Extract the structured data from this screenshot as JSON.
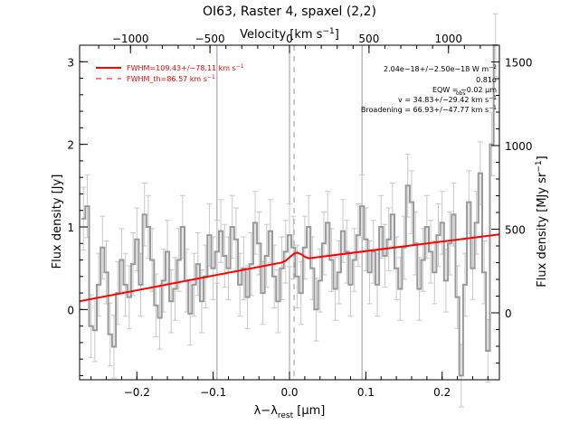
{
  "chart_data": {
    "type": "line",
    "title": "OI63, Raster 4, spaxel (2,2)",
    "xlabel": "λ−λ",
    "xlabel_sub": "rest",
    "xlabel_unit": " [μm]",
    "ylabel": "Flux density [Jy]",
    "ylabel_right": "Flux density [MJy sr",
    "ylabel_right_sup": "−1",
    "ylabel_right_end": "]",
    "xlabel_top": "Velocity [km s",
    "xlabel_top_sup": "−1",
    "xlabel_top_end": "]",
    "xlim": [
      -0.275,
      0.275
    ],
    "ylim": [
      -0.85,
      3.2
    ],
    "ylim_right": [
      -400,
      1600
    ],
    "vlim": [
      -1320,
      1320
    ],
    "x_ticks": [
      -0.2,
      -0.1,
      0.0,
      0.1,
      0.2
    ],
    "x_tick_labels": [
      "−0.2",
      "−0.1",
      "0.0",
      "0.1",
      "0.2"
    ],
    "y_ticks": [
      0,
      1,
      2,
      3
    ],
    "y_tick_labels": [
      "0",
      "1",
      "2",
      "3"
    ],
    "y_right_ticks": [
      0,
      500,
      1000,
      1500
    ],
    "y_right_tick_labels": [
      "0",
      "500",
      "1000",
      "1500"
    ],
    "v_ticks": [
      -1000,
      -500,
      0,
      500,
      1000
    ],
    "v_tick_labels": [
      "−1000",
      "−500",
      "0",
      "500",
      "1000"
    ],
    "vertical_lines_solid": [
      -0.095,
      0.0,
      0.095
    ],
    "vertical_line_dashed": 0.006,
    "legend": [
      {
        "text": "FWHM=109.43+/−78.11 km s",
        "sup": "−1",
        "style": "solid",
        "color": "#ff0000"
      },
      {
        "text": "FWHM_th=86.57 km s",
        "sup": "−1",
        "style": "dashed",
        "color": "#ff0000"
      }
    ],
    "annotations": [
      "2.04e−18+/−2.50e−18 W m",
      "0.81σ",
      "EQW = −0.02 μm",
      "v = 34.83+/−29.42 km s",
      "Broadening = 66.93+/−47.77 km s"
    ],
    "annotation_sups": [
      "−2",
      "",
      "",
      "−1",
      "−1"
    ],
    "eqw_sub": "obs",
    "series": [
      {
        "style": "step",
        "color": "#999999",
        "x": [
          -0.27,
          -0.265,
          -0.26,
          -0.255,
          -0.25,
          -0.245,
          -0.24,
          -0.235,
          -0.23,
          -0.225,
          -0.22,
          -0.215,
          -0.21,
          -0.205,
          -0.2,
          -0.195,
          -0.19,
          -0.185,
          -0.18,
          -0.175,
          -0.17,
          -0.165,
          -0.16,
          -0.155,
          -0.15,
          -0.145,
          -0.14,
          -0.135,
          -0.13,
          -0.125,
          -0.12,
          -0.115,
          -0.11,
          -0.105,
          -0.1,
          -0.095,
          -0.09,
          -0.085,
          -0.08,
          -0.075,
          -0.07,
          -0.065,
          -0.06,
          -0.055,
          -0.05,
          -0.045,
          -0.04,
          -0.035,
          -0.03,
          -0.025,
          -0.02,
          -0.015,
          -0.01,
          -0.005,
          0.0,
          0.005,
          0.01,
          0.015,
          0.02,
          0.025,
          0.03,
          0.035,
          0.04,
          0.045,
          0.05,
          0.055,
          0.06,
          0.065,
          0.07,
          0.075,
          0.08,
          0.085,
          0.09,
          0.095,
          0.1,
          0.105,
          0.11,
          0.115,
          0.12,
          0.125,
          0.13,
          0.135,
          0.14,
          0.145,
          0.15,
          0.155,
          0.16,
          0.165,
          0.17,
          0.175,
          0.18,
          0.185,
          0.19,
          0.195,
          0.2,
          0.205,
          0.21,
          0.215,
          0.22,
          0.225,
          0.23,
          0.235,
          0.24,
          0.245,
          0.25,
          0.255,
          0.26,
          0.265,
          0.27
        ],
        "values": [
          1.1,
          1.25,
          -0.2,
          -0.25,
          0.3,
          0.75,
          0.45,
          -0.3,
          -0.45,
          0.2,
          0.6,
          0.3,
          0.15,
          0.55,
          0.85,
          0.3,
          1.15,
          1.0,
          0.6,
          0.05,
          -0.1,
          0.35,
          0.7,
          0.1,
          0.25,
          0.6,
          1.0,
          0.35,
          -0.05,
          0.3,
          0.55,
          0.1,
          0.4,
          0.9,
          0.5,
          0.7,
          0.95,
          0.65,
          0.5,
          1.0,
          0.85,
          0.3,
          0.5,
          0.15,
          0.55,
          1.05,
          0.8,
          0.2,
          0.65,
          0.95,
          0.4,
          0.1,
          0.5,
          0.7,
          0.9,
          0.75,
          0.4,
          0.2,
          0.75,
          1.0,
          0.5,
          0.0,
          0.35,
          0.8,
          1.05,
          0.6,
          0.25,
          0.45,
          0.95,
          0.7,
          0.3,
          0.6,
          0.9,
          1.25,
          0.85,
          0.45,
          0.7,
          0.3,
          1.0,
          0.65,
          0.85,
          1.15,
          0.5,
          0.25,
          0.75,
          1.5,
          1.3,
          0.8,
          0.25,
          0.6,
          1.0,
          0.7,
          0.45,
          0.9,
          1.05,
          0.35,
          0.8,
          1.15,
          0.15,
          -0.8,
          0.3,
          1.3,
          0.5,
          1.05,
          1.65,
          0.45,
          -0.5,
          2.0,
          3.2
        ]
      },
      {
        "style": "line",
        "color": "#ff0000",
        "x": [
          -0.275,
          -0.01,
          -0.005,
          0.0,
          0.005,
          0.01,
          0.015,
          0.02,
          0.025,
          0.275
        ],
        "values": [
          0.1,
          0.57,
          0.59,
          0.63,
          0.67,
          0.69,
          0.67,
          0.64,
          0.62,
          0.91
        ]
      }
    ]
  }
}
